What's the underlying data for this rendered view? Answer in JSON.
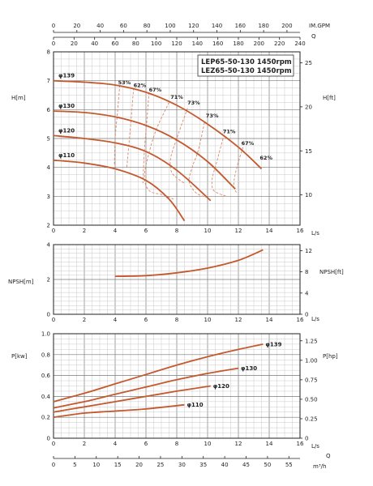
{
  "chart_data": [
    {
      "type": "line",
      "title_lines": [
        "LEP65-50-130 1450rpm",
        "LEZ65-50-130 1450rpm"
      ],
      "ylabel": "H[m]",
      "ylabel_right": "H[ft]",
      "xlabel": "L/s",
      "xlim": [
        0,
        16
      ],
      "ylim": [
        2,
        8
      ],
      "xticks": [
        "0",
        "2",
        "4",
        "6",
        "8",
        "10",
        "12",
        "14",
        "16"
      ],
      "yticks": [
        "2",
        "3",
        "4",
        "5",
        "6",
        "7",
        "8"
      ],
      "right_ticks": [
        "10",
        "15",
        "20",
        "25"
      ],
      "right_values": [
        10,
        15,
        20,
        25
      ],
      "top_axis_gpm": {
        "unit": "IM.GPM",
        "ticks": [
          "0",
          "20",
          "40",
          "60",
          "80",
          "100",
          "120",
          "140",
          "160",
          "180",
          "200"
        ],
        "values": [
          0,
          20,
          40,
          60,
          80,
          100,
          120,
          140,
          160,
          180,
          200
        ]
      },
      "top_axis_q": {
        "unit": "Q",
        "ticks": [
          "0",
          "20",
          "40",
          "60",
          "80",
          "100",
          "120",
          "140",
          "160",
          "180",
          "200",
          "220",
          "240"
        ],
        "values": [
          0,
          20,
          40,
          60,
          80,
          100,
          120,
          140,
          160,
          180,
          200,
          220,
          240
        ]
      },
      "series": [
        {
          "name": "φ139",
          "x": [
            0,
            2,
            4,
            6,
            8,
            10,
            12,
            13.5
          ],
          "y": [
            7.0,
            6.95,
            6.85,
            6.6,
            6.15,
            5.5,
            4.7,
            3.95
          ]
        },
        {
          "name": "φ130",
          "x": [
            0,
            2,
            4,
            6,
            8,
            10,
            11.8
          ],
          "y": [
            5.95,
            5.9,
            5.75,
            5.45,
            4.95,
            4.2,
            3.25
          ]
        },
        {
          "name": "φ120",
          "x": [
            0,
            2,
            4,
            6,
            8,
            10.2
          ],
          "y": [
            5.1,
            5.0,
            4.85,
            4.55,
            3.9,
            2.85
          ]
        },
        {
          "name": "φ110",
          "x": [
            0,
            2,
            4,
            6,
            7.5,
            8.5
          ],
          "y": [
            4.25,
            4.15,
            3.95,
            3.55,
            2.9,
            2.15
          ]
        }
      ],
      "efficiency_labels": [
        {
          "label": "53%",
          "x": 4.6,
          "y": 6.85
        },
        {
          "label": "62%",
          "x": 5.6,
          "y": 6.75
        },
        {
          "label": "67%",
          "x": 6.6,
          "y": 6.6
        },
        {
          "label": "71%",
          "x": 8.0,
          "y": 6.35
        },
        {
          "label": "73%",
          "x": 9.1,
          "y": 6.15
        },
        {
          "label": "73%",
          "x": 10.3,
          "y": 5.7
        },
        {
          "label": "71%",
          "x": 11.4,
          "y": 5.15
        },
        {
          "label": "67%",
          "x": 12.6,
          "y": 4.75
        },
        {
          "label": "62%",
          "x": 13.8,
          "y": 4.25
        }
      ],
      "efficiency_contours": [
        {
          "x": [
            4.3,
            4.15,
            4.0,
            3.95
          ],
          "y": [
            6.85,
            5.9,
            5.0,
            4.1
          ]
        },
        {
          "x": [
            5.2,
            5.05,
            4.9,
            4.75
          ],
          "y": [
            6.75,
            5.75,
            4.85,
            3.95
          ]
        },
        {
          "x": [
            6.2,
            6.05,
            5.9,
            5.8
          ],
          "y": [
            6.6,
            5.55,
            4.6,
            3.45
          ]
        },
        {
          "x": [
            7.5,
            6.7,
            6.2,
            5.9,
            6.2,
            7.1,
            7.8
          ],
          "y": [
            6.25,
            5.35,
            4.5,
            3.7,
            3.2,
            3.05,
            2.9
          ]
        },
        {
          "x": [
            8.7,
            8.0,
            7.6,
            7.7,
            8.5
          ],
          "y": [
            6.05,
            5.0,
            4.3,
            3.8,
            3.45
          ]
        },
        {
          "x": [
            9.8,
            9.4,
            9.0,
            8.8,
            9.3,
            10.1
          ],
          "y": [
            5.55,
            4.6,
            4.0,
            3.5,
            3.1,
            2.95
          ]
        },
        {
          "x": [
            11.0,
            10.6,
            10.3,
            10.4,
            11.2
          ],
          "y": [
            5.0,
            4.2,
            3.6,
            3.2,
            3.0
          ]
        },
        {
          "x": [
            12.3,
            11.9,
            11.7,
            11.9
          ],
          "y": [
            4.7,
            4.0,
            3.4,
            3.1
          ]
        }
      ]
    },
    {
      "type": "line",
      "ylabel": "NPSH[m]",
      "ylabel_right": "NPSH[ft]",
      "xlabel": "L/s",
      "xlim": [
        0,
        16
      ],
      "ylim": [
        0,
        4
      ],
      "xticks": [
        "0",
        "2",
        "4",
        "6",
        "8",
        "10",
        "12",
        "14",
        "16"
      ],
      "yticks": [
        "0",
        "2",
        "4"
      ],
      "right_ticks": [
        "0",
        "4",
        "8",
        "12"
      ],
      "right_values": [
        0,
        4,
        8,
        12
      ],
      "series": [
        {
          "name": "",
          "x": [
            4,
            6,
            8,
            10,
            12,
            13.6
          ],
          "y": [
            2.18,
            2.22,
            2.38,
            2.65,
            3.1,
            3.7
          ]
        }
      ]
    },
    {
      "type": "line",
      "ylabel": "P[kw]",
      "ylabel_right": "P[hp]",
      "xlabel": "L/s",
      "xlim": [
        0,
        16
      ],
      "ylim": [
        0,
        1.0
      ],
      "xticks": [
        "0",
        "2",
        "4",
        "6",
        "8",
        "10",
        "12",
        "14",
        "16"
      ],
      "yticks": [
        "0",
        "0.2",
        "0.4",
        "0.6",
        "0.8",
        "1.0"
      ],
      "right_ticks": [
        "0",
        "0.25",
        "0.50",
        "0.75",
        "1.00",
        "1.25"
      ],
      "right_values": [
        0,
        0.25,
        0.5,
        0.75,
        1.0,
        1.25
      ],
      "bottom_axis_m3h": {
        "unit": "m³/h",
        "ticks": [
          "0",
          "5",
          "10",
          "15",
          "20",
          "25",
          "30",
          "35",
          "40",
          "45",
          "50",
          "55"
        ],
        "values": [
          0,
          5,
          10,
          15,
          20,
          25,
          30,
          35,
          40,
          45,
          50,
          55
        ]
      },
      "bottom_axis_q": "Q",
      "series": [
        {
          "name": "φ139",
          "x": [
            0,
            2,
            4,
            6,
            8,
            10,
            12,
            13.6
          ],
          "y": [
            0.35,
            0.43,
            0.52,
            0.61,
            0.7,
            0.78,
            0.85,
            0.9
          ]
        },
        {
          "name": "φ130",
          "x": [
            0,
            2,
            4,
            6,
            8,
            10,
            12
          ],
          "y": [
            0.29,
            0.35,
            0.42,
            0.49,
            0.56,
            0.62,
            0.67
          ]
        },
        {
          "name": "φ120",
          "x": [
            0,
            2,
            4,
            6,
            8,
            10.2
          ],
          "y": [
            0.25,
            0.3,
            0.35,
            0.4,
            0.45,
            0.5
          ]
        },
        {
          "name": "φ110",
          "x": [
            0,
            2,
            4,
            6,
            8.5
          ],
          "y": [
            0.2,
            0.24,
            0.26,
            0.28,
            0.32
          ]
        }
      ]
    }
  ]
}
